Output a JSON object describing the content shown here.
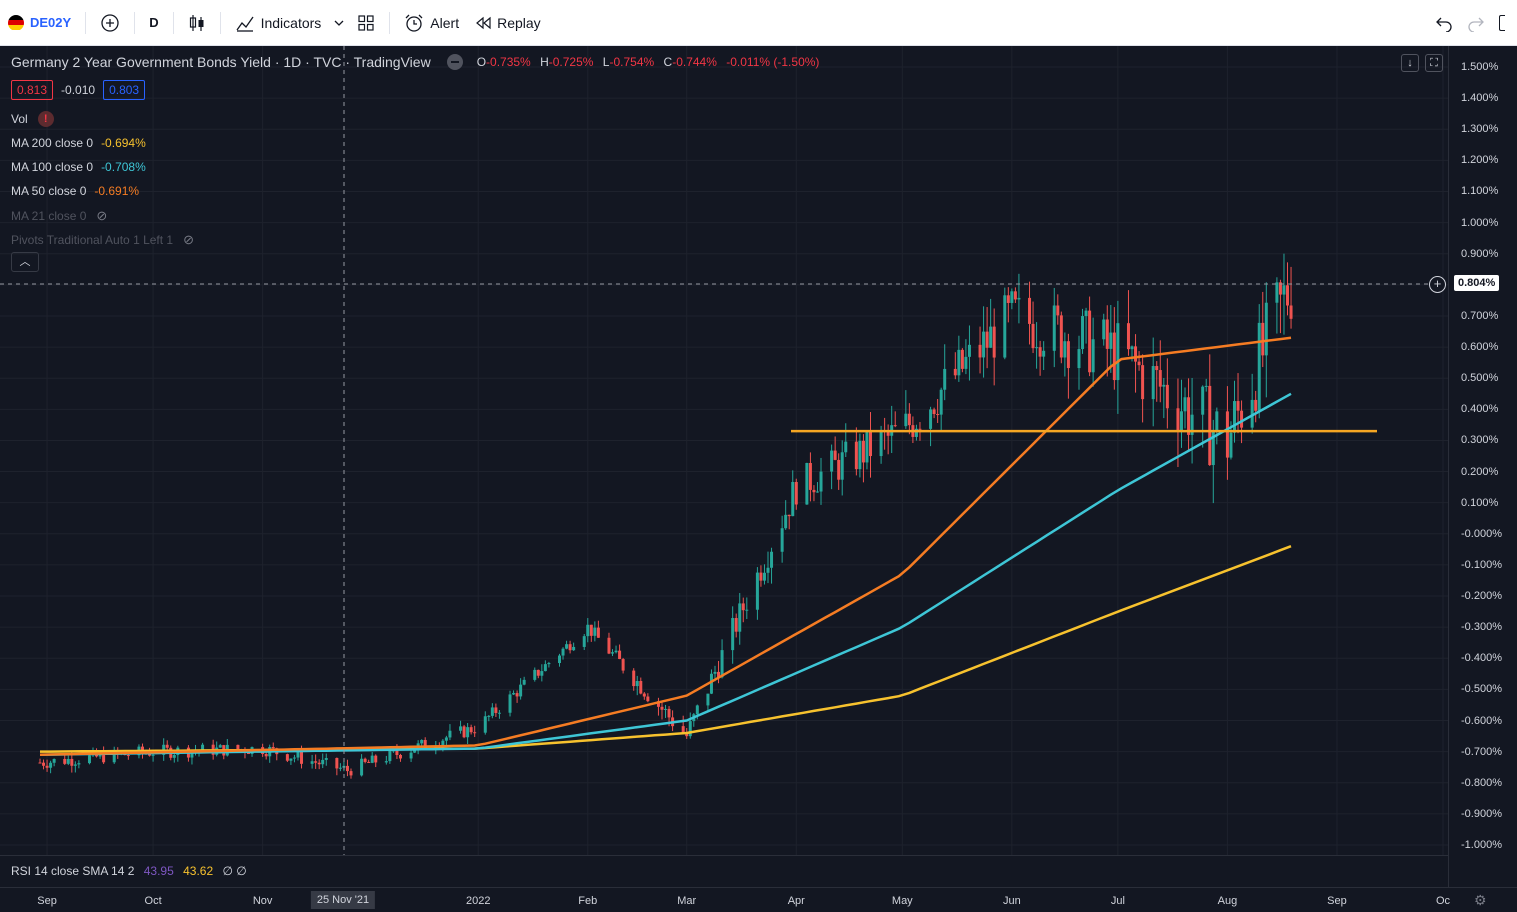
{
  "toolbar": {
    "symbol": "DE02Y",
    "interval": "D",
    "indicators_label": "Indicators",
    "alert_label": "Alert",
    "replay_label": "Replay",
    "flag_colors": [
      "#000000",
      "#dd0000",
      "#ffce00"
    ]
  },
  "legend": {
    "title": "Germany 2 Year Government Bonds Yield · 1D · TVC · TradingView",
    "open_key": "O",
    "open": "-0.735%",
    "high_key": "H",
    "high": "-0.725%",
    "low_key": "L",
    "low": "-0.754%",
    "close_key": "C",
    "close": "-0.744%",
    "change": "-0.011% (-1.50%)",
    "bid": "0.813",
    "spread": "-0.010",
    "ask": "0.803"
  },
  "indicators": [
    {
      "name": "Vol",
      "value": "",
      "color": "#d1d4dc"
    },
    {
      "name": "MA 200 close 0",
      "value": "-0.694%",
      "color": "#f7c22e"
    },
    {
      "name": "MA 100 close 0",
      "value": "-0.708%",
      "color": "#3ec6d6"
    },
    {
      "name": "MA 50 close 0",
      "value": "-0.691%",
      "color": "#f57c23"
    },
    {
      "name": "MA 21 close 0",
      "value": "",
      "color": "#50535e"
    },
    {
      "name": "Pivots Traditional Auto 1 Left 1",
      "value": "",
      "color": "#50535e"
    }
  ],
  "rsi": {
    "label": "RSI 14 close SMA 14 2",
    "value1": "43.95",
    "value2": "43.62",
    "extra": "∅ ∅"
  },
  "price_axis": [
    "1.500%",
    "1.400%",
    "1.300%",
    "1.200%",
    "1.100%",
    "1.000%",
    "0.900%",
    "0.800%",
    "0.700%",
    "0.600%",
    "0.500%",
    "0.400%",
    "0.300%",
    "0.200%",
    "0.100%",
    "-0.000%",
    "-0.100%",
    "-0.200%",
    "-0.300%",
    "-0.400%",
    "-0.500%",
    "-0.600%",
    "-0.700%",
    "-0.800%",
    "-0.900%",
    "-1.000%"
  ],
  "last_price": "0.804%",
  "time_axis": [
    "Sep",
    "Oct",
    "Nov",
    "2022",
    "Feb",
    "Mar",
    "Apr",
    "May",
    "Jun",
    "Jul",
    "Aug",
    "Sep",
    "Oc"
  ],
  "crosshair_date": "25 Nov '21",
  "colors": {
    "background": "#131722",
    "up": "#26a69a",
    "down": "#ef5350",
    "ma200": "#f7c22e",
    "ma100": "#3ec6d6",
    "ma50": "#f57c23",
    "level": "#f5a623"
  },
  "chart_data": {
    "type": "candlestick",
    "ylim": [
      -1.0,
      1.5
    ],
    "x": [
      "2021-08-30",
      "2021-10-01",
      "2021-11-01",
      "2021-11-25",
      "2022-01-01",
      "2022-02-01",
      "2022-03-01",
      "2022-04-01",
      "2022-05-01",
      "2022-06-01",
      "2022-07-01",
      "2022-08-01",
      "2022-08-19"
    ],
    "close": [
      -0.735,
      -0.7,
      -0.69,
      -0.76,
      -0.62,
      -0.3,
      -0.65,
      0.15,
      0.33,
      0.7,
      0.58,
      0.3,
      0.804
    ],
    "series": [
      {
        "name": "MA 200",
        "x": [
          "2021-08-30",
          "2022-01-01",
          "2022-03-01",
          "2022-05-01",
          "2022-07-01",
          "2022-08-19"
        ],
        "y": [
          -0.7,
          -0.69,
          -0.64,
          -0.52,
          -0.25,
          -0.04
        ]
      },
      {
        "name": "MA 100",
        "x": [
          "2021-08-30",
          "2022-01-01",
          "2022-03-01",
          "2022-05-01",
          "2022-07-01",
          "2022-08-19"
        ],
        "y": [
          -0.71,
          -0.69,
          -0.6,
          -0.3,
          0.14,
          0.45
        ]
      },
      {
        "name": "MA 50",
        "x": [
          "2021-08-30",
          "2022-01-01",
          "2022-03-01",
          "2022-05-01",
          "2022-07-01",
          "2022-08-19"
        ],
        "y": [
          -0.71,
          -0.68,
          -0.52,
          -0.13,
          0.56,
          0.63
        ]
      }
    ],
    "level": 0.33
  }
}
